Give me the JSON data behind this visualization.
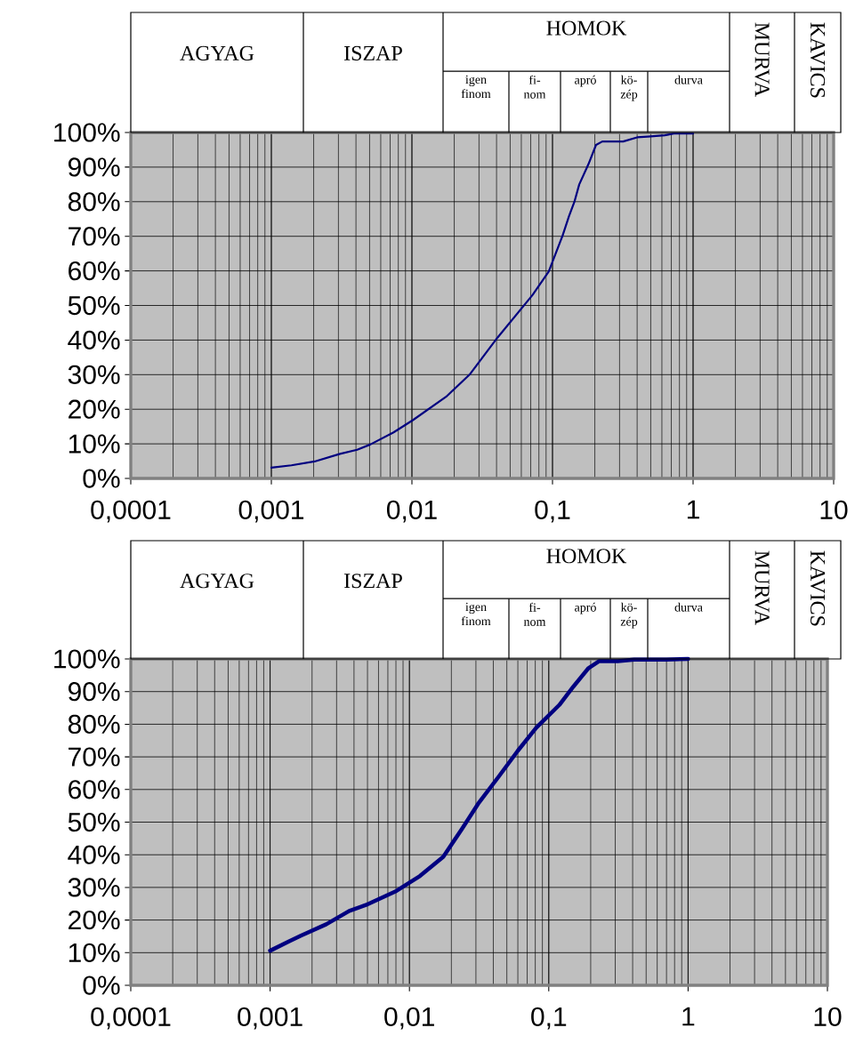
{
  "chart_data": [
    {
      "type": "line",
      "log": "x",
      "grid": true,
      "color": "#000080",
      "xlim": [
        0.0001,
        10
      ],
      "ylim": [
        0,
        100
      ],
      "xticks": [
        {
          "value": 0.0001,
          "label": "0,0001"
        },
        {
          "value": 0.001,
          "label": "0,001"
        },
        {
          "value": 0.01,
          "label": "0,01"
        },
        {
          "value": 0.1,
          "label": "0,1"
        },
        {
          "value": 1,
          "label": "1"
        },
        {
          "value": 10,
          "label": "10"
        }
      ],
      "yticks": [
        {
          "value": 0,
          "label": "0%"
        },
        {
          "value": 10,
          "label": "10%"
        },
        {
          "value": 20,
          "label": "20%"
        },
        {
          "value": 30,
          "label": "30%"
        },
        {
          "value": 40,
          "label": "40%"
        },
        {
          "value": 50,
          "label": "50%"
        },
        {
          "value": 60,
          "label": "60%"
        },
        {
          "value": 70,
          "label": "70%"
        },
        {
          "value": 80,
          "label": "80%"
        },
        {
          "value": 90,
          "label": "90%"
        },
        {
          "value": 100,
          "label": "100%"
        }
      ],
      "x": [
        0.001,
        0.00139,
        0.00203,
        0.00308,
        0.00408,
        0.00505,
        0.0074,
        0.0102,
        0.0175,
        0.0257,
        0.0406,
        0.072,
        0.094,
        0.118,
        0.131,
        0.143,
        0.155,
        0.18,
        0.204,
        0.226,
        0.318,
        0.4,
        0.5,
        0.63,
        0.73,
        1.0
      ],
      "values": [
        3.1,
        3.8,
        4.9,
        7.1,
        8.3,
        9.8,
        13.3,
        16.9,
        23.6,
        30,
        40.7,
        53,
        59.8,
        70.2,
        75.8,
        79.9,
        85,
        90.8,
        96.4,
        97.4,
        97.4,
        98.6,
        98.9,
        99.2,
        99.7,
        99.7
      ],
      "annotations": [
        "AGYAG",
        "ISZAP",
        "HOMOK",
        "igen finom",
        "fi-nom",
        "apró",
        "kö-zép",
        "durva",
        "MURVA",
        "KAVICS"
      ]
    },
    {
      "type": "line",
      "log": "x",
      "grid": true,
      "color": "#000080",
      "xlim": [
        0.0001,
        10
      ],
      "ylim": [
        0,
        100
      ],
      "xticks": [
        {
          "value": 0.0001,
          "label": "0,0001"
        },
        {
          "value": 0.001,
          "label": "0,001"
        },
        {
          "value": 0.01,
          "label": "0,01"
        },
        {
          "value": 0.1,
          "label": "0,1"
        },
        {
          "value": 1,
          "label": "1"
        },
        {
          "value": 10,
          "label": "10"
        }
      ],
      "yticks": [
        {
          "value": 0,
          "label": "0%"
        },
        {
          "value": 10,
          "label": "10%"
        },
        {
          "value": 20,
          "label": "20%"
        },
        {
          "value": 30,
          "label": "30%"
        },
        {
          "value": 40,
          "label": "40%"
        },
        {
          "value": 50,
          "label": "50%"
        },
        {
          "value": 60,
          "label": "60%"
        },
        {
          "value": 70,
          "label": "70%"
        },
        {
          "value": 80,
          "label": "80%"
        },
        {
          "value": 90,
          "label": "90%"
        },
        {
          "value": 100,
          "label": "100%"
        }
      ],
      "x": [
        0.001,
        0.00136,
        0.00166,
        0.00253,
        0.0037,
        0.00487,
        0.00805,
        0.0119,
        0.0175,
        0.0238,
        0.0311,
        0.044,
        0.0598,
        0.0813,
        0.119,
        0.15,
        0.193,
        0.229,
        0.313,
        0.41,
        0.7,
        1.0
      ],
      "values": [
        10.6,
        13.4,
        15.2,
        18.7,
        22.8,
        24.6,
        28.9,
        33.5,
        39.4,
        47.9,
        55.6,
        64.1,
        71.8,
        78.9,
        85.9,
        91.5,
        97.2,
        99.3,
        99.3,
        99.8,
        99.8,
        100
      ],
      "annotations": [
        "AGYAG",
        "ISZAP",
        "HOMOK",
        "igen finom",
        "fi-nom",
        "apró",
        "kö-zép",
        "durva",
        "MURVA",
        "KAVICS"
      ]
    }
  ]
}
